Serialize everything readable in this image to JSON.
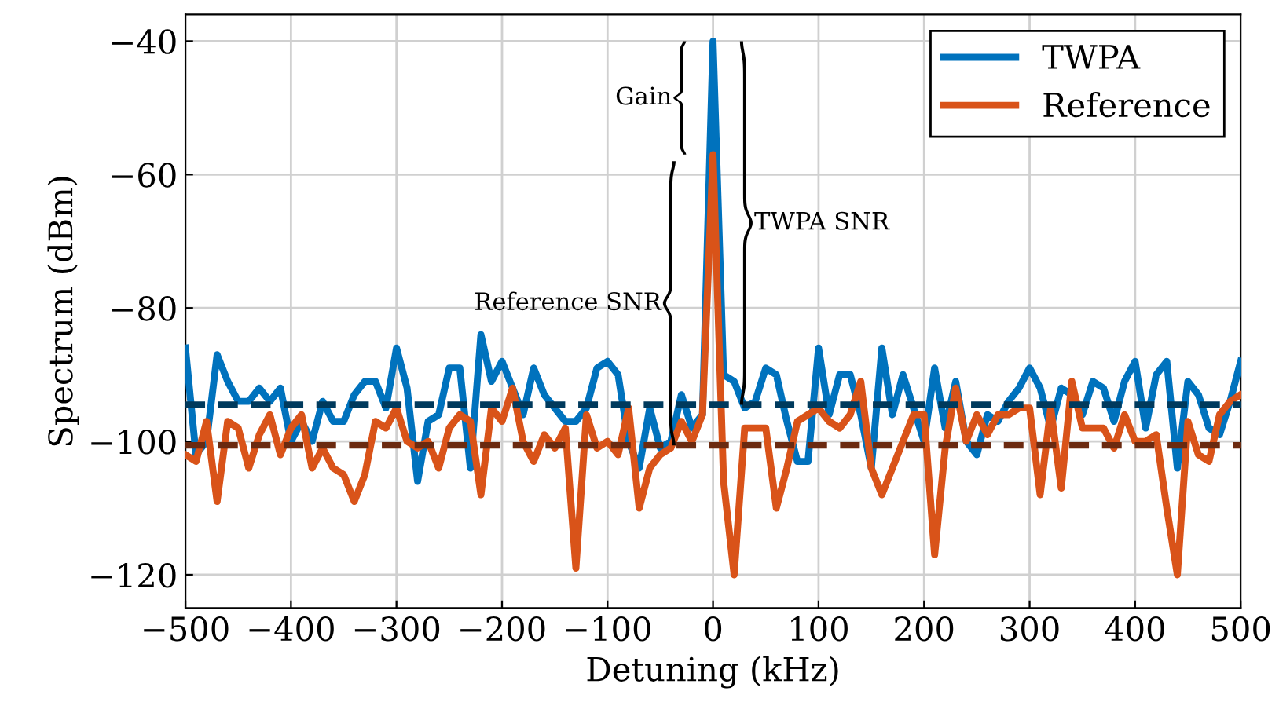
{
  "chart_data": {
    "type": "line",
    "xlabel": "Detuning (kHz)",
    "ylabel": "Spectrum (dBm)",
    "x": [
      -500,
      -490,
      -480,
      -470,
      -460,
      -450,
      -440,
      -430,
      -420,
      -410,
      -400,
      -390,
      -380,
      -370,
      -360,
      -350,
      -340,
      -330,
      -320,
      -310,
      -300,
      -290,
      -280,
      -270,
      -260,
      -250,
      -240,
      -230,
      -220,
      -210,
      -200,
      -190,
      -180,
      -170,
      -160,
      -150,
      -140,
      -130,
      -120,
      -110,
      -100,
      -90,
      -80,
      -70,
      -60,
      -50,
      -40,
      -30,
      -20,
      -10,
      0,
      10,
      20,
      30,
      40,
      50,
      60,
      70,
      80,
      90,
      100,
      110,
      120,
      130,
      140,
      150,
      160,
      170,
      180,
      190,
      200,
      210,
      220,
      230,
      240,
      250,
      260,
      270,
      280,
      290,
      300,
      310,
      320,
      330,
      340,
      350,
      360,
      370,
      380,
      390,
      400,
      410,
      420,
      430,
      440,
      450,
      460,
      470,
      480,
      490,
      500
    ],
    "series": [
      {
        "name": "TWPA",
        "color": "#0072bd",
        "values": [
          -86,
          -102,
          -100,
          -87,
          -91,
          -94,
          -94,
          -92,
          -94,
          -92,
          -100,
          -97,
          -100,
          -94,
          -97,
          -97,
          -93,
          -91,
          -91,
          -95,
          -86,
          -92,
          -106,
          -97,
          -96,
          -89,
          -89,
          -104,
          -84,
          -91,
          -88,
          -92,
          -96,
          -89,
          -93,
          -95,
          -97,
          -97,
          -95,
          -89,
          -88,
          -90,
          -100,
          -104,
          -95,
          -101,
          -100,
          -93,
          -98,
          -96,
          -40,
          -90,
          -91,
          -95,
          -94,
          -89,
          -90,
          -97,
          -103,
          -103,
          -86,
          -96,
          -90,
          -90,
          -96,
          -104,
          -86,
          -96,
          -90,
          -95,
          -100,
          -89,
          -98,
          -91,
          -100,
          -102,
          -96,
          -97,
          -94,
          -92,
          -89,
          -92,
          -98,
          -92,
          -93,
          -96,
          -91,
          -92,
          -97,
          -91,
          -88,
          -98,
          -90,
          -88,
          -104,
          -91,
          -93,
          -98,
          -99,
          -94,
          -88
        ]
      },
      {
        "name": "Reference",
        "color": "#d95319",
        "values": [
          -102,
          -103,
          -97,
          -109,
          -97,
          -98,
          -104,
          -99,
          -96,
          -102,
          -98,
          -96,
          -104,
          -101,
          -104,
          -105,
          -109,
          -105,
          -97,
          -98,
          -95,
          -100,
          -101,
          -100,
          -104,
          -98,
          -96,
          -97,
          -108,
          -95,
          -97,
          -92,
          -100,
          -103,
          -99,
          -101,
          -98,
          -119,
          -96,
          -101,
          -100,
          -102,
          -95,
          -110,
          -104,
          -102,
          -101,
          -97,
          -100,
          -96,
          -57,
          -106,
          -120,
          -98,
          -98,
          -98,
          -110,
          -104,
          -97,
          -96,
          -95,
          -97,
          -98,
          -96,
          -91,
          -104,
          -108,
          -104,
          -100,
          -96,
          -96,
          -117,
          -101,
          -92,
          -100,
          -96,
          -99,
          -96,
          -96,
          -95,
          -95,
          -108,
          -95,
          -107,
          -91,
          -98,
          -98,
          -98,
          -101,
          -96,
          -100,
          -100,
          -99,
          -110,
          -120,
          -97,
          -102,
          -103,
          -96,
          -94,
          -93
        ]
      }
    ],
    "xlim": [
      -500,
      500
    ],
    "xticks": [
      {
        "value": -500,
        "label": "−500"
      },
      {
        "value": -400,
        "label": "−400"
      },
      {
        "value": -300,
        "label": "−300"
      },
      {
        "value": -200,
        "label": "−200"
      },
      {
        "value": -100,
        "label": "−100"
      },
      0,
      100,
      200,
      300,
      400,
      500
    ],
    "ylim": [
      -125,
      -36
    ],
    "yticks": [
      {
        "value": -120,
        "label": "−120"
      },
      {
        "value": -100,
        "label": "−100"
      },
      {
        "value": -80,
        "label": "−80"
      },
      {
        "value": -60,
        "label": "−60"
      },
      {
        "value": -40,
        "label": "−40"
      }
    ],
    "ref_lines": [
      {
        "axis": "y",
        "value": -94.5,
        "color": "#003a5d",
        "line_style": "dashed"
      },
      {
        "axis": "y",
        "value": -100.6,
        "color": "#6b2a10",
        "line_style": "dashed"
      }
    ],
    "annotations": [
      "Gain",
      "Reference SNR",
      "TWPA SNR"
    ],
    "grid": true,
    "legend": "top right",
    "marker": "none",
    "line_style": "solid"
  }
}
